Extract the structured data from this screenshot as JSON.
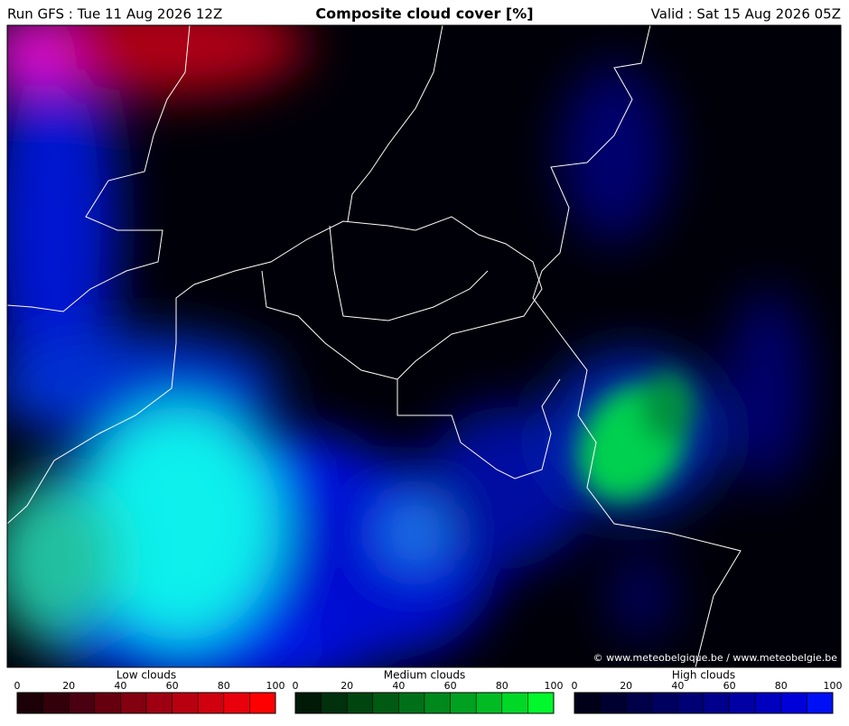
{
  "header": {
    "run": "Run GFS : Tue 11 Aug 2026 12Z",
    "title": "Composite cloud cover [%]",
    "valid": "Valid : Sat 15 Aug 2026 05Z"
  },
  "map": {
    "credit": "© www.meteobelgique.be / www.meteobelgie.be"
  },
  "legends": [
    {
      "title": "Low clouds",
      "ticks": [
        0,
        20,
        40,
        60,
        80,
        100
      ],
      "colors": [
        "#1c0008",
        "#33000a",
        "#4a0010",
        "#66000f",
        "#820010",
        "#9e0012",
        "#b80010",
        "#d0000e",
        "#e8000a",
        "#ff0000"
      ]
    },
    {
      "title": "Medium clouds",
      "ticks": [
        0,
        20,
        40,
        60,
        80,
        100
      ],
      "colors": [
        "#001a08",
        "#00300c",
        "#004510",
        "#005a12",
        "#007018",
        "#00881c",
        "#00a020",
        "#00bb24",
        "#00d828",
        "#00f82c"
      ]
    },
    {
      "title": "High clouds",
      "ticks": [
        0,
        20,
        40,
        60,
        80,
        100
      ],
      "colors": [
        "#000018",
        "#000030",
        "#000048",
        "#00005e",
        "#000074",
        "#00008c",
        "#0000a4",
        "#0000be",
        "#0000d8",
        "#0010f4"
      ]
    }
  ]
}
